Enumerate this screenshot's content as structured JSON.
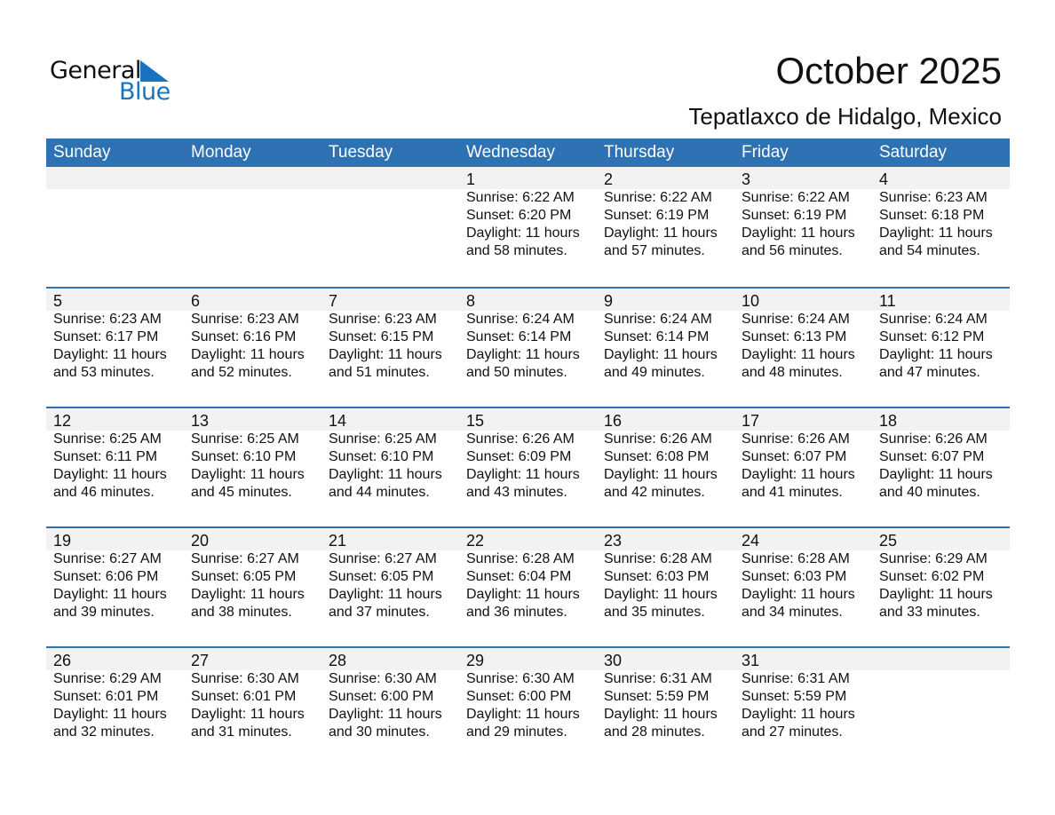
{
  "logo": {
    "word1": "General",
    "word2": "Blue",
    "color": "#1a73c0"
  },
  "title": "October 2025",
  "location": "Tepatlaxco de Hidalgo, Mexico",
  "colors": {
    "header": "#2e72b4",
    "day_band": "#f2f2f2"
  },
  "weekdays": [
    "Sunday",
    "Monday",
    "Tuesday",
    "Wednesday",
    "Thursday",
    "Friday",
    "Saturday"
  ],
  "first_weekday_index": 3,
  "days": [
    {
      "day": "1",
      "sunrise": "Sunrise: 6:22 AM",
      "sunset": "Sunset: 6:20 PM",
      "daylight1": "Daylight: 11 hours",
      "daylight2": "and 58 minutes."
    },
    {
      "day": "2",
      "sunrise": "Sunrise: 6:22 AM",
      "sunset": "Sunset: 6:19 PM",
      "daylight1": "Daylight: 11 hours",
      "daylight2": "and 57 minutes."
    },
    {
      "day": "3",
      "sunrise": "Sunrise: 6:22 AM",
      "sunset": "Sunset: 6:19 PM",
      "daylight1": "Daylight: 11 hours",
      "daylight2": "and 56 minutes."
    },
    {
      "day": "4",
      "sunrise": "Sunrise: 6:23 AM",
      "sunset": "Sunset: 6:18 PM",
      "daylight1": "Daylight: 11 hours",
      "daylight2": "and 54 minutes."
    },
    {
      "day": "5",
      "sunrise": "Sunrise: 6:23 AM",
      "sunset": "Sunset: 6:17 PM",
      "daylight1": "Daylight: 11 hours",
      "daylight2": "and 53 minutes."
    },
    {
      "day": "6",
      "sunrise": "Sunrise: 6:23 AM",
      "sunset": "Sunset: 6:16 PM",
      "daylight1": "Daylight: 11 hours",
      "daylight2": "and 52 minutes."
    },
    {
      "day": "7",
      "sunrise": "Sunrise: 6:23 AM",
      "sunset": "Sunset: 6:15 PM",
      "daylight1": "Daylight: 11 hours",
      "daylight2": "and 51 minutes."
    },
    {
      "day": "8",
      "sunrise": "Sunrise: 6:24 AM",
      "sunset": "Sunset: 6:14 PM",
      "daylight1": "Daylight: 11 hours",
      "daylight2": "and 50 minutes."
    },
    {
      "day": "9",
      "sunrise": "Sunrise: 6:24 AM",
      "sunset": "Sunset: 6:14 PM",
      "daylight1": "Daylight: 11 hours",
      "daylight2": "and 49 minutes."
    },
    {
      "day": "10",
      "sunrise": "Sunrise: 6:24 AM",
      "sunset": "Sunset: 6:13 PM",
      "daylight1": "Daylight: 11 hours",
      "daylight2": "and 48 minutes."
    },
    {
      "day": "11",
      "sunrise": "Sunrise: 6:24 AM",
      "sunset": "Sunset: 6:12 PM",
      "daylight1": "Daylight: 11 hours",
      "daylight2": "and 47 minutes."
    },
    {
      "day": "12",
      "sunrise": "Sunrise: 6:25 AM",
      "sunset": "Sunset: 6:11 PM",
      "daylight1": "Daylight: 11 hours",
      "daylight2": "and 46 minutes."
    },
    {
      "day": "13",
      "sunrise": "Sunrise: 6:25 AM",
      "sunset": "Sunset: 6:10 PM",
      "daylight1": "Daylight: 11 hours",
      "daylight2": "and 45 minutes."
    },
    {
      "day": "14",
      "sunrise": "Sunrise: 6:25 AM",
      "sunset": "Sunset: 6:10 PM",
      "daylight1": "Daylight: 11 hours",
      "daylight2": "and 44 minutes."
    },
    {
      "day": "15",
      "sunrise": "Sunrise: 6:26 AM",
      "sunset": "Sunset: 6:09 PM",
      "daylight1": "Daylight: 11 hours",
      "daylight2": "and 43 minutes."
    },
    {
      "day": "16",
      "sunrise": "Sunrise: 6:26 AM",
      "sunset": "Sunset: 6:08 PM",
      "daylight1": "Daylight: 11 hours",
      "daylight2": "and 42 minutes."
    },
    {
      "day": "17",
      "sunrise": "Sunrise: 6:26 AM",
      "sunset": "Sunset: 6:07 PM",
      "daylight1": "Daylight: 11 hours",
      "daylight2": "and 41 minutes."
    },
    {
      "day": "18",
      "sunrise": "Sunrise: 6:26 AM",
      "sunset": "Sunset: 6:07 PM",
      "daylight1": "Daylight: 11 hours",
      "daylight2": "and 40 minutes."
    },
    {
      "day": "19",
      "sunrise": "Sunrise: 6:27 AM",
      "sunset": "Sunset: 6:06 PM",
      "daylight1": "Daylight: 11 hours",
      "daylight2": "and 39 minutes."
    },
    {
      "day": "20",
      "sunrise": "Sunrise: 6:27 AM",
      "sunset": "Sunset: 6:05 PM",
      "daylight1": "Daylight: 11 hours",
      "daylight2": "and 38 minutes."
    },
    {
      "day": "21",
      "sunrise": "Sunrise: 6:27 AM",
      "sunset": "Sunset: 6:05 PM",
      "daylight1": "Daylight: 11 hours",
      "daylight2": "and 37 minutes."
    },
    {
      "day": "22",
      "sunrise": "Sunrise: 6:28 AM",
      "sunset": "Sunset: 6:04 PM",
      "daylight1": "Daylight: 11 hours",
      "daylight2": "and 36 minutes."
    },
    {
      "day": "23",
      "sunrise": "Sunrise: 6:28 AM",
      "sunset": "Sunset: 6:03 PM",
      "daylight1": "Daylight: 11 hours",
      "daylight2": "and 35 minutes."
    },
    {
      "day": "24",
      "sunrise": "Sunrise: 6:28 AM",
      "sunset": "Sunset: 6:03 PM",
      "daylight1": "Daylight: 11 hours",
      "daylight2": "and 34 minutes."
    },
    {
      "day": "25",
      "sunrise": "Sunrise: 6:29 AM",
      "sunset": "Sunset: 6:02 PM",
      "daylight1": "Daylight: 11 hours",
      "daylight2": "and 33 minutes."
    },
    {
      "day": "26",
      "sunrise": "Sunrise: 6:29 AM",
      "sunset": "Sunset: 6:01 PM",
      "daylight1": "Daylight: 11 hours",
      "daylight2": "and 32 minutes."
    },
    {
      "day": "27",
      "sunrise": "Sunrise: 6:30 AM",
      "sunset": "Sunset: 6:01 PM",
      "daylight1": "Daylight: 11 hours",
      "daylight2": "and 31 minutes."
    },
    {
      "day": "28",
      "sunrise": "Sunrise: 6:30 AM",
      "sunset": "Sunset: 6:00 PM",
      "daylight1": "Daylight: 11 hours",
      "daylight2": "and 30 minutes."
    },
    {
      "day": "29",
      "sunrise": "Sunrise: 6:30 AM",
      "sunset": "Sunset: 6:00 PM",
      "daylight1": "Daylight: 11 hours",
      "daylight2": "and 29 minutes."
    },
    {
      "day": "30",
      "sunrise": "Sunrise: 6:31 AM",
      "sunset": "Sunset: 5:59 PM",
      "daylight1": "Daylight: 11 hours",
      "daylight2": "and 28 minutes."
    },
    {
      "day": "31",
      "sunrise": "Sunrise: 6:31 AM",
      "sunset": "Sunset: 5:59 PM",
      "daylight1": "Daylight: 11 hours",
      "daylight2": "and 27 minutes."
    }
  ]
}
